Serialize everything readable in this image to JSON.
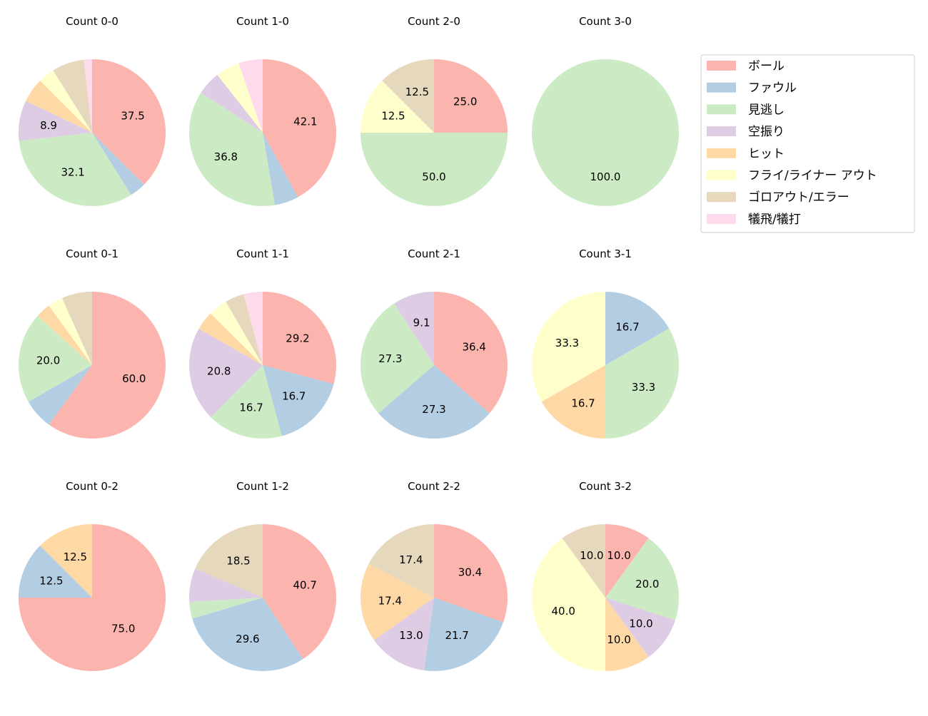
{
  "chart_data": {
    "type": "pie",
    "start_angle": 90,
    "direction": "clockwise",
    "label_format": "percent, 1 decimal, small slices unlabeled",
    "legend": {
      "placement": "upper-right",
      "entries": [
        "ボール",
        "ファウル",
        "見逃し",
        "空振り",
        "ヒット",
        "フライ/ライナー アウト",
        "ゴロアウト/エラー",
        "犠飛/犠打"
      ]
    },
    "colors": [
      "#fbb4ae",
      "#b3cde3",
      "#ccebc5",
      "#decbe4",
      "#fed9a6",
      "#ffffcc",
      "#e5d8bd",
      "#fddaec"
    ],
    "charts": [
      {
        "title": "Count 0-0",
        "values": [
          37.5,
          3.6,
          32.1,
          8.9,
          5.4,
          3.6,
          7.1,
          1.8
        ]
      },
      {
        "title": "Count 1-0",
        "values": [
          42.1,
          5.3,
          36.8,
          5.3,
          0,
          5.3,
          0,
          5.3
        ]
      },
      {
        "title": "Count 2-0",
        "values": [
          25.0,
          0,
          50.0,
          0,
          0,
          12.5,
          12.5,
          0
        ]
      },
      {
        "title": "Count 3-0",
        "values": [
          0,
          0,
          100.0,
          0,
          0,
          0,
          0,
          0
        ]
      },
      {
        "title": "Count 0-1",
        "values": [
          60.0,
          6.7,
          20.0,
          0,
          3.3,
          3.3,
          6.7,
          0
        ]
      },
      {
        "title": "Count 1-1",
        "values": [
          29.2,
          16.7,
          16.7,
          20.8,
          4.2,
          4.2,
          4.2,
          4.2
        ]
      },
      {
        "title": "Count 2-1",
        "values": [
          36.4,
          27.3,
          27.3,
          9.1,
          0,
          0,
          0,
          0
        ]
      },
      {
        "title": "Count 3-1",
        "values": [
          0,
          16.7,
          33.3,
          0,
          16.7,
          33.3,
          0,
          0
        ]
      },
      {
        "title": "Count 0-2",
        "values": [
          75.0,
          12.5,
          0,
          0,
          12.5,
          0,
          0,
          0
        ]
      },
      {
        "title": "Count 1-2",
        "values": [
          40.7,
          29.6,
          3.7,
          7.4,
          0,
          0,
          18.5,
          0
        ]
      },
      {
        "title": "Count 2-2",
        "values": [
          30.4,
          21.7,
          0,
          13.0,
          17.4,
          0,
          17.4,
          0
        ]
      },
      {
        "title": "Count 3-2",
        "values": [
          10.0,
          0,
          20.0,
          10.0,
          10.0,
          40.0,
          10.0,
          0
        ]
      }
    ]
  }
}
